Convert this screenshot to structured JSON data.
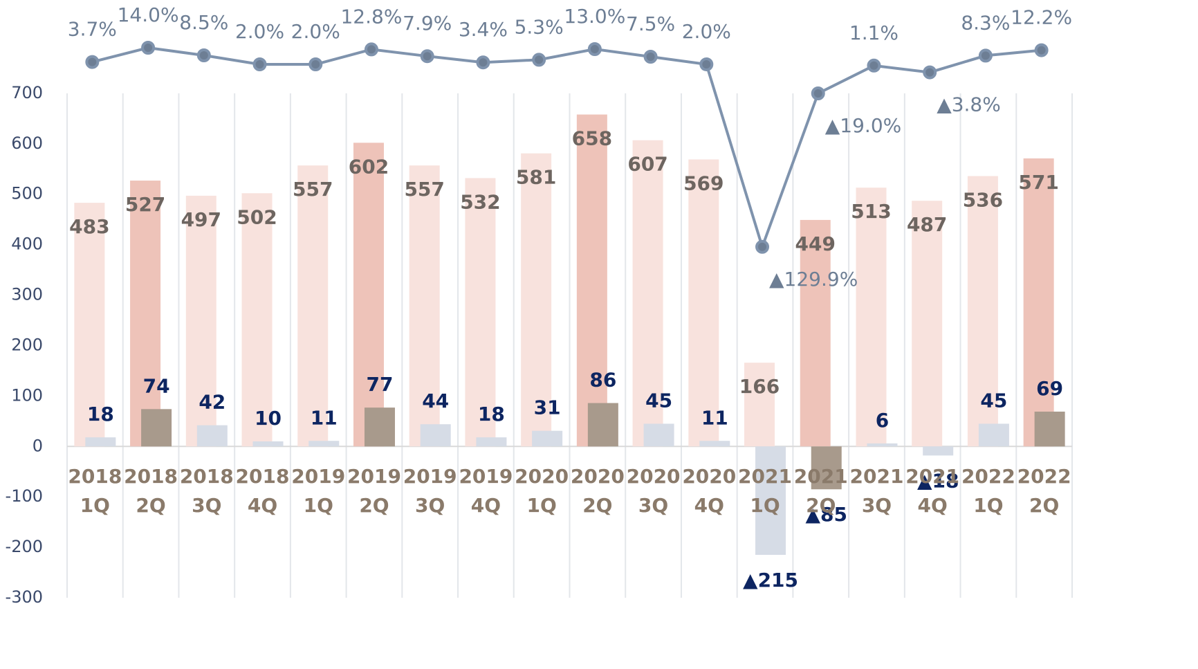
{
  "chart_data": {
    "type": "combo",
    "categories": [
      "2018 1Q",
      "2018 2Q",
      "2018 3Q",
      "2018 4Q",
      "2019 1Q",
      "2019 2Q",
      "2019 3Q",
      "2019 4Q",
      "2020 1Q",
      "2020 2Q",
      "2020 3Q",
      "2020 4Q",
      "2021 1Q",
      "2021 2Q",
      "2021 3Q",
      "2021 4Q",
      "2022 1Q",
      "2022 2Q"
    ],
    "ylim": [
      -300,
      800
    ],
    "yticks": [
      -300,
      -200,
      -100,
      0,
      100,
      200,
      300,
      400,
      500,
      600,
      700
    ],
    "y2lim": [
      -383.5,
      17.5
    ],
    "grid": false,
    "series": [
      {
        "type": "bar",
        "colors": [
          "#f8e2dd",
          "#eec3b9",
          "#f8e2dd",
          "#f8e2dd",
          "#f8e2dd",
          "#eec3b9",
          "#f8e2dd",
          "#f8e2dd",
          "#f8e2dd",
          "#eec3b9",
          "#f8e2dd",
          "#f8e2dd",
          "#f8e2dd",
          "#eec3b9",
          "#f8e2dd",
          "#f8e2dd",
          "#f8e2dd",
          "#eec3b9"
        ],
        "values": [
          483,
          527,
          497,
          502,
          557,
          602,
          557,
          532,
          581,
          658,
          607,
          569,
          166,
          449,
          513,
          487,
          536,
          571
        ]
      },
      {
        "type": "bar",
        "colors": [
          "#d6dce6",
          "#a89a8c",
          "#d6dce6",
          "#d6dce6",
          "#d6dce6",
          "#a89a8c",
          "#d6dce6",
          "#d6dce6",
          "#d6dce6",
          "#a89a8c",
          "#d6dce6",
          "#d6dce6",
          "#d6dce6",
          "#a89a8c",
          "#d6dce6",
          "#d6dce6",
          "#d6dce6",
          "#a89a8c"
        ],
        "values": [
          18,
          74,
          42,
          10,
          11,
          77,
          44,
          18,
          31,
          86,
          45,
          11,
          -215,
          -85,
          6,
          -18,
          45,
          69
        ],
        "value_labels": [
          "18",
          "74",
          "42",
          "10",
          "11",
          "77",
          "44",
          "18",
          "31",
          "86",
          "45",
          "11",
          "▲215",
          "▲85",
          "6",
          "▲18",
          "45",
          "69"
        ]
      },
      {
        "type": "line",
        "axis": "y2",
        "color": "#7f93ad",
        "values": [
          3.7,
          14.0,
          8.5,
          2.0,
          2.0,
          12.8,
          7.9,
          3.4,
          5.3,
          13.0,
          7.5,
          2.0,
          -129.9,
          -19.0,
          1.1,
          -3.8,
          8.3,
          12.2
        ],
        "value_labels": [
          "3.7%",
          "14.0%",
          "8.5%",
          "2.0%",
          "2.0%",
          "12.8%",
          "7.9%",
          "3.4%",
          "5.3%",
          "13.0%",
          "7.5%",
          "2.0%",
          "▲129.9%",
          "▲19.0%",
          "1.1%",
          "▲3.8%",
          "8.3%",
          "12.2%"
        ]
      }
    ]
  }
}
